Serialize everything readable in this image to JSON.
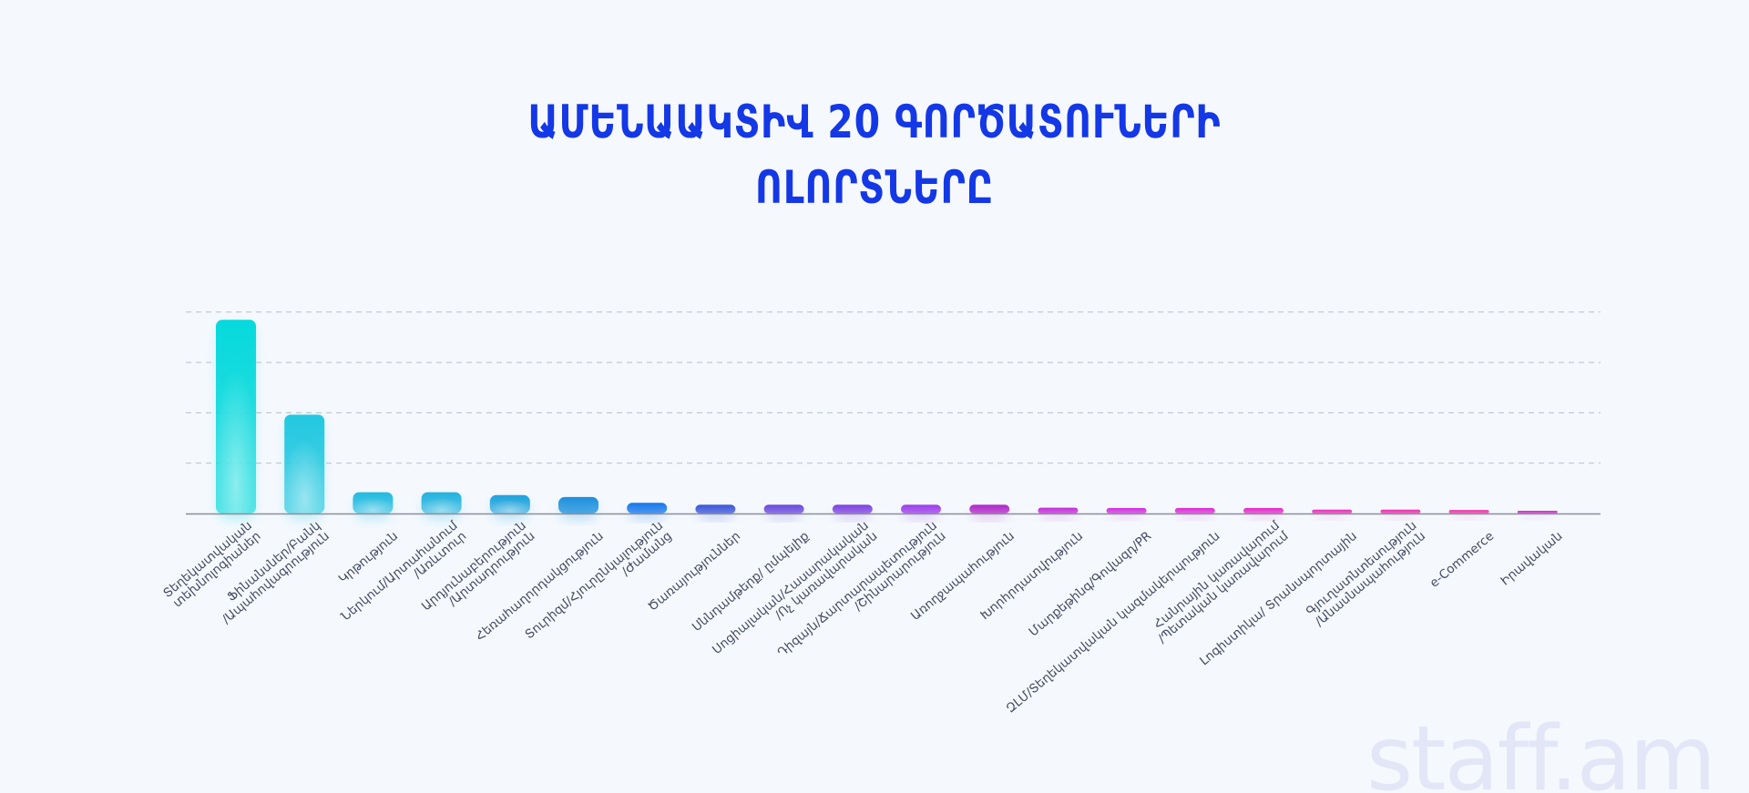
{
  "title": {
    "line1": "ԱՄԵՆԱԱԿՏԻՎ 20 ԳՈՐԾԱՏՈՒՆԵՐԻ",
    "line2": "ՈԼՈՐՏՆԵՐԸ"
  },
  "watermark": "staff.am",
  "chart_data": {
    "type": "bar",
    "title": "ԱՄԵՆԱԱԿՏԻՎ 20 ԳՈՐԾԱՏՈՒՆԵՐԻ ՈԼՈՐՏՆԵՐԸ",
    "categories": [
      [
        "Տեղեկատվական",
        "տեխնոլոգիաներ"
      ],
      [
        "Ֆինանսներ/Բանկ",
        "/Ապահովագրություն"
      ],
      [
        "Կրթություն"
      ],
      [
        "Ներկում/Արտահանում",
        "/Առևտուր"
      ],
      [
        "Արդյունաբերություն",
        "/Արտադրություն"
      ],
      [
        "Հեռահաղորդակցություն"
      ],
      [
        "Տուրիզմ/Հյուրընկալություն",
        "/Ժամանց"
      ],
      [
        "Ծառայություններ"
      ],
      [
        "Սննդամթերք/ ըմպելիք"
      ],
      [
        "Սոցիալական/Հասարակական",
        "/Ոչ կառավարական"
      ],
      [
        "Դիզայն/Ճարտարապետություն",
        "/Շինարարություն"
      ],
      [
        "Առողջապահություն"
      ],
      [
        "Խորհրդատվություն"
      ],
      [
        "Մարքեթինգ/Գովազդ/PR"
      ],
      [
        "ԶԼՄ/Տեղեկատվական կազմակերպություն"
      ],
      [
        "Հանրային կառավարում",
        "/Պետական կառավարում"
      ],
      [
        "Լոգիստիկա/ Տրանսպորտային"
      ],
      [
        "Գյուղատնտեսություն",
        "/Անասնապահություն"
      ],
      [
        "e-Commerce"
      ],
      [
        "Իրավական"
      ]
    ],
    "values": [
      100,
      51,
      11,
      11,
      9.5,
      8.5,
      5.5,
      4.5,
      4.5,
      4.5,
      4.5,
      4.5,
      3,
      2.8,
      2.8,
      2.8,
      2,
      2,
      1.8,
      1
    ],
    "ylim": [
      0,
      110
    ],
    "grid": true,
    "gridlines": [
      26,
      52,
      78,
      104
    ],
    "colors": [
      "#06d9dc",
      "#22c8e0",
      "#23bbe0",
      "#22b3de",
      "#1fa3dc",
      "#1c8fdc",
      "#1677ea",
      "#3a55d8",
      "#6a48dc",
      "#7d40e0",
      "#9c3bea",
      "#b025c8",
      "#c42bd8",
      "#d12ee0",
      "#dc2bd8",
      "#e629cc",
      "#e82fb8",
      "#ea30b0",
      "#ec34a8",
      "#d02ec8"
    ]
  }
}
